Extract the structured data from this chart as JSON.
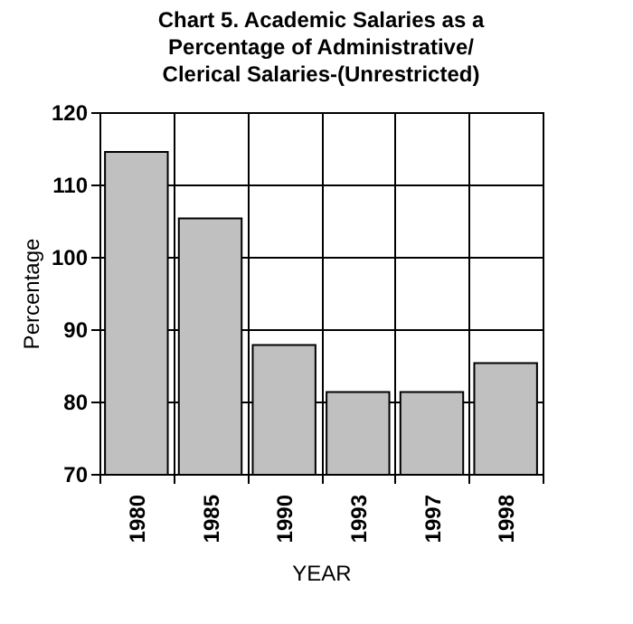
{
  "chart_data": {
    "type": "bar",
    "title": "Chart 5.  Academic Salaries as a Percentage of Administrative/ Clerical Salaries-(Unrestricted)",
    "xlabel": "YEAR",
    "ylabel": "Percentage",
    "categories": [
      "1980",
      "1985",
      "1990",
      "1993",
      "1997",
      "1998"
    ],
    "values": [
      114.5,
      105.3,
      87.8,
      81.3,
      81.3,
      85.3
    ],
    "color": "#c0c0c0",
    "ylim": [
      70,
      120
    ],
    "yticks": [
      70,
      80,
      90,
      100,
      110,
      120
    ],
    "grid": true
  }
}
